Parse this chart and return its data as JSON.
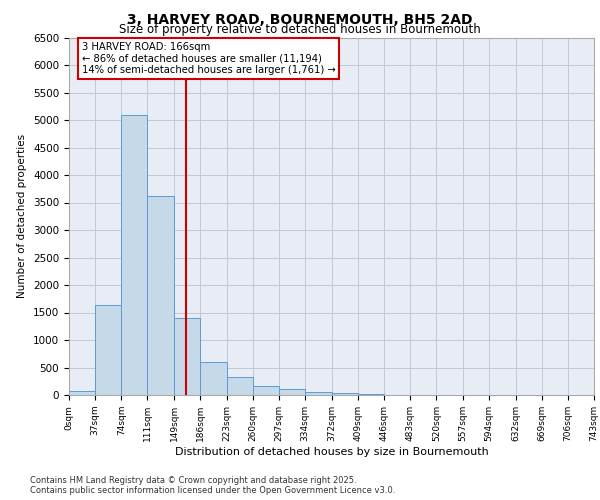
{
  "title1": "3, HARVEY ROAD, BOURNEMOUTH, BH5 2AD",
  "title2": "Size of property relative to detached houses in Bournemouth",
  "xlabel": "Distribution of detached houses by size in Bournemouth",
  "ylabel": "Number of detached properties",
  "bar_edges": [
    0,
    37,
    74,
    111,
    149,
    186,
    223,
    260,
    297,
    334,
    372,
    409,
    446,
    483,
    520,
    557,
    594,
    632,
    669,
    706,
    743
  ],
  "bar_heights": [
    75,
    1640,
    5100,
    3620,
    1400,
    600,
    320,
    155,
    110,
    55,
    30,
    10,
    0,
    0,
    0,
    0,
    0,
    0,
    0,
    0
  ],
  "bar_color": "#c5d9e8",
  "bar_edge_color": "#5b9bd5",
  "vline_x": 166,
  "vline_color": "#cc0000",
  "annotation_line1": "3 HARVEY ROAD: 166sqm",
  "annotation_line2": "← 86% of detached houses are smaller (11,194)",
  "annotation_line3": "14% of semi-detached houses are larger (1,761) →",
  "annotation_box_color": "#cc0000",
  "ylim": [
    0,
    6500
  ],
  "yticks": [
    0,
    500,
    1000,
    1500,
    2000,
    2500,
    3000,
    3500,
    4000,
    4500,
    5000,
    5500,
    6000,
    6500
  ],
  "grid_color": "#c0c8d8",
  "bg_color": "#e8edf5",
  "footer_line1": "Contains HM Land Registry data © Crown copyright and database right 2025.",
  "footer_line2": "Contains public sector information licensed under the Open Government Licence v3.0."
}
